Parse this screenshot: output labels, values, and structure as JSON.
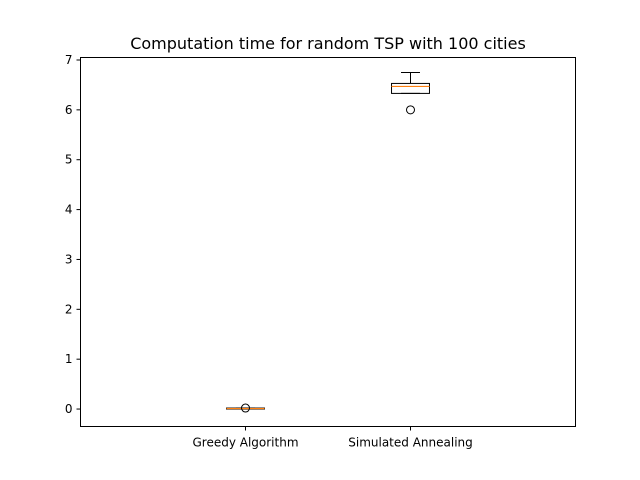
{
  "chart_data": {
    "type": "box",
    "title": "Computation time for random TSP with 100 cities",
    "xlabel": "",
    "ylabel": "",
    "categories": [
      "Greedy Algorithm",
      "Simulated Annealing"
    ],
    "ylim": [
      -0.35,
      7.05
    ],
    "yticks": [
      "0",
      "1",
      "2",
      "3",
      "4",
      "5",
      "6",
      "7"
    ],
    "grid": false,
    "boxes": [
      {
        "label": "Greedy Algorithm",
        "whisker_low": 0.0,
        "q1": 0.0,
        "median": 0.01,
        "q3": 0.02,
        "whisker_high": 0.02,
        "outliers": [
          0.02
        ]
      },
      {
        "label": "Simulated Annealing",
        "whisker_low": 6.33,
        "q1": 6.33,
        "median": 6.47,
        "q3": 6.53,
        "whisker_high": 6.75,
        "outliers": [
          6.0
        ]
      }
    ],
    "colors": {
      "box": "#000000",
      "median": "#ff7f0e",
      "outlier": "#000000"
    }
  }
}
